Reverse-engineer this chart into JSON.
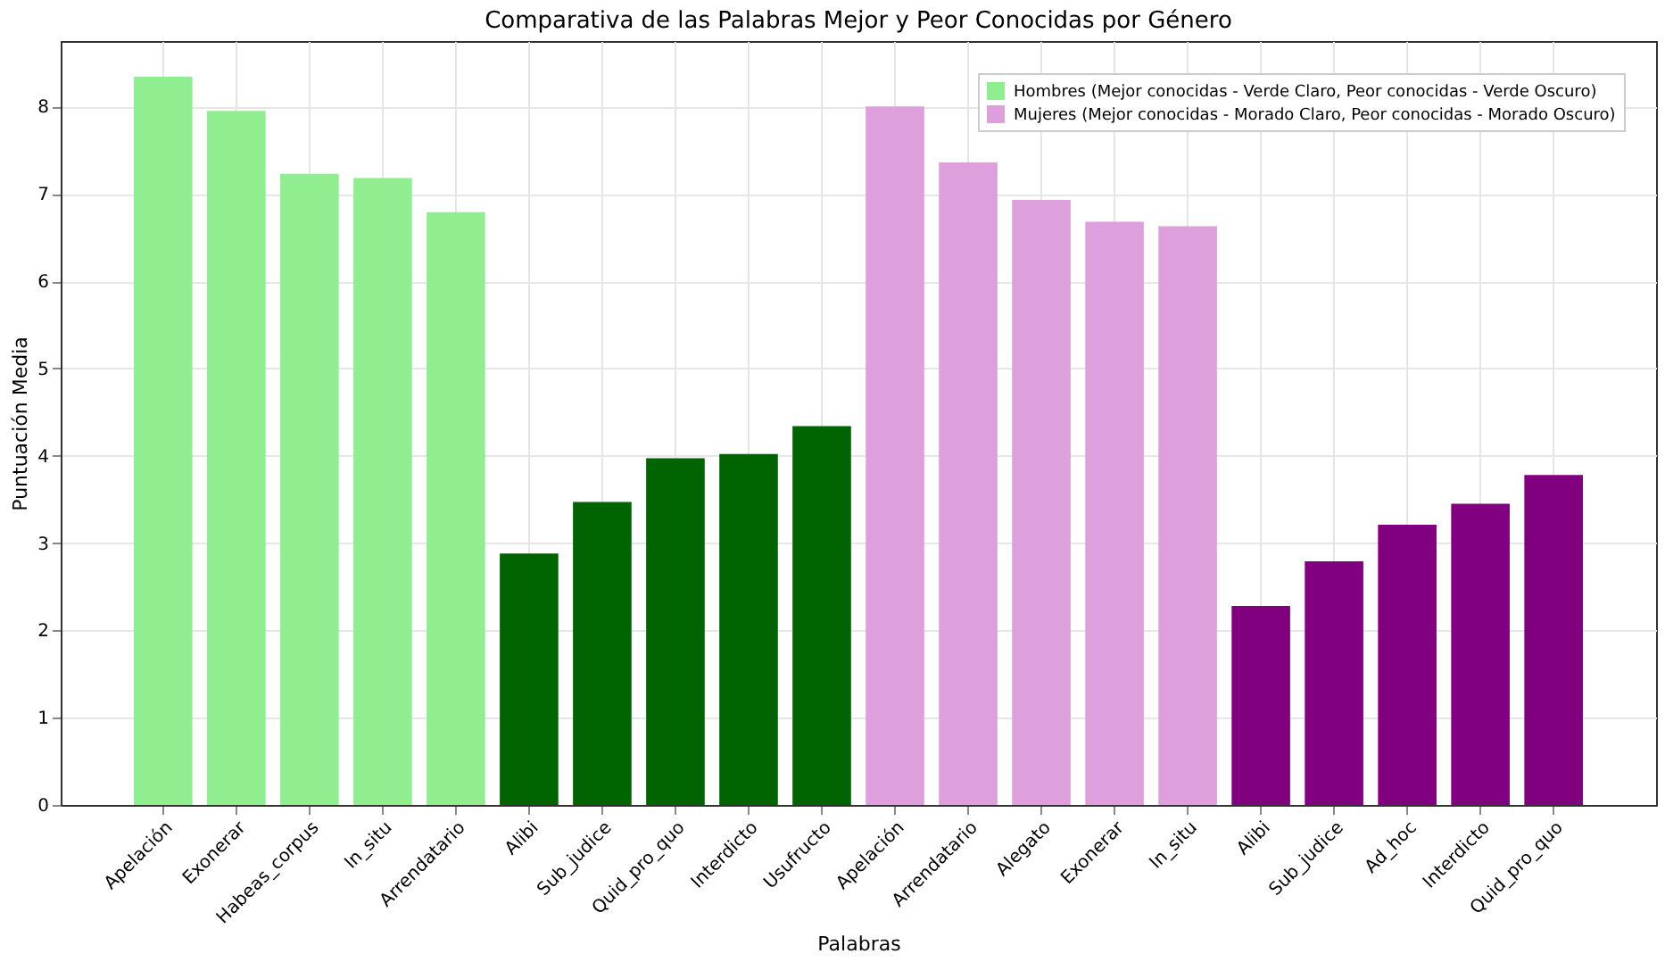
{
  "chart_data": {
    "type": "bar",
    "title": "Comparativa de las Palabras Mejor y Peor Conocidas por Género",
    "xlabel": "Palabras",
    "ylabel": "Puntuación Media",
    "categories": [
      "Apelación",
      "Exonerar",
      "Habeas_corpus",
      "In_situ",
      "Arrendatario",
      "Alibi",
      "Sub_judice",
      "Quid_pro_quo",
      "Interdicto",
      "Usufructo",
      "Apelación",
      "Arrendatario",
      "Alegato",
      "Exonerar",
      "In_situ",
      "Alibi",
      "Sub_judice",
      "Ad_hoc",
      "Interdicto",
      "Quid_pro_quo"
    ],
    "series": [
      {
        "name": "Hombres (Mejor conocidas - Verde Claro, Peor conocidas - Verde Oscuro)",
        "color": "#90ee90",
        "colors": [
          "#90ee90",
          "#90ee90",
          "#90ee90",
          "#90ee90",
          "#90ee90",
          "#006400",
          "#006400",
          "#006400",
          "#006400",
          "#006400",
          null,
          null,
          null,
          null,
          null,
          null,
          null,
          null,
          null,
          null
        ],
        "values": [
          8.34,
          7.95,
          7.23,
          7.18,
          6.79,
          2.88,
          3.47,
          3.97,
          4.02,
          4.34,
          null,
          null,
          null,
          null,
          null,
          null,
          null,
          null,
          null,
          null
        ]
      },
      {
        "name": "Mujeres (Mejor conocidas - Morado Claro, Peor conocidas - Morado Oscuro)",
        "color": "#dda0dd",
        "colors": [
          null,
          null,
          null,
          null,
          null,
          null,
          null,
          null,
          null,
          null,
          "#dda0dd",
          "#dda0dd",
          "#dda0dd",
          "#dda0dd",
          "#dda0dd",
          "#800080",
          "#800080",
          "#800080",
          "#800080",
          "#800080"
        ],
        "values": [
          null,
          null,
          null,
          null,
          null,
          null,
          null,
          null,
          null,
          null,
          8.0,
          7.36,
          6.93,
          6.68,
          6.63,
          2.28,
          2.79,
          3.21,
          3.45,
          3.78
        ]
      }
    ],
    "ylim": [
      0,
      8.75
    ],
    "yticks": [
      0,
      1,
      2,
      3,
      4,
      5,
      6,
      7,
      8
    ],
    "grid": true,
    "legend": "top right"
  }
}
